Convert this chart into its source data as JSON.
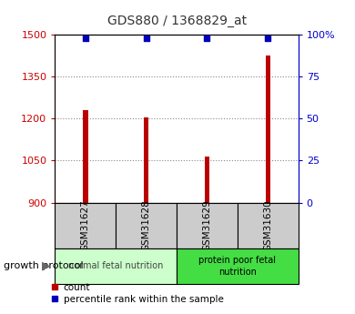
{
  "title": "GDS880 / 1368829_at",
  "samples": [
    "GSM31627",
    "GSM31628",
    "GSM31629",
    "GSM31630"
  ],
  "count_values": [
    1230,
    1205,
    1065,
    1425
  ],
  "percentile_values": [
    98,
    98,
    98,
    98
  ],
  "ylim_left": [
    900,
    1500
  ],
  "ylim_right": [
    0,
    100
  ],
  "yticks_left": [
    900,
    1050,
    1200,
    1350,
    1500
  ],
  "yticks_right": [
    0,
    25,
    50,
    75,
    100
  ],
  "ytick_labels_right": [
    "0",
    "25",
    "50",
    "75",
    "100%"
  ],
  "bar_color": "#bb0000",
  "dot_color": "#0000bb",
  "group1_label": "normal fetal nutrition",
  "group2_label": "protein poor fetal\nnutrition",
  "group1_bg": "#ccffcc",
  "group2_bg": "#44dd44",
  "sample_bg": "#cccccc",
  "protocol_label": "growth protocol",
  "legend_count_label": "count",
  "legend_pct_label": "percentile rank within the sample",
  "title_color": "#333333",
  "left_tick_color": "#cc0000",
  "right_tick_color": "#0000cc",
  "grid_color": "#888888",
  "bar_width": 0.08,
  "dot_size": 20
}
